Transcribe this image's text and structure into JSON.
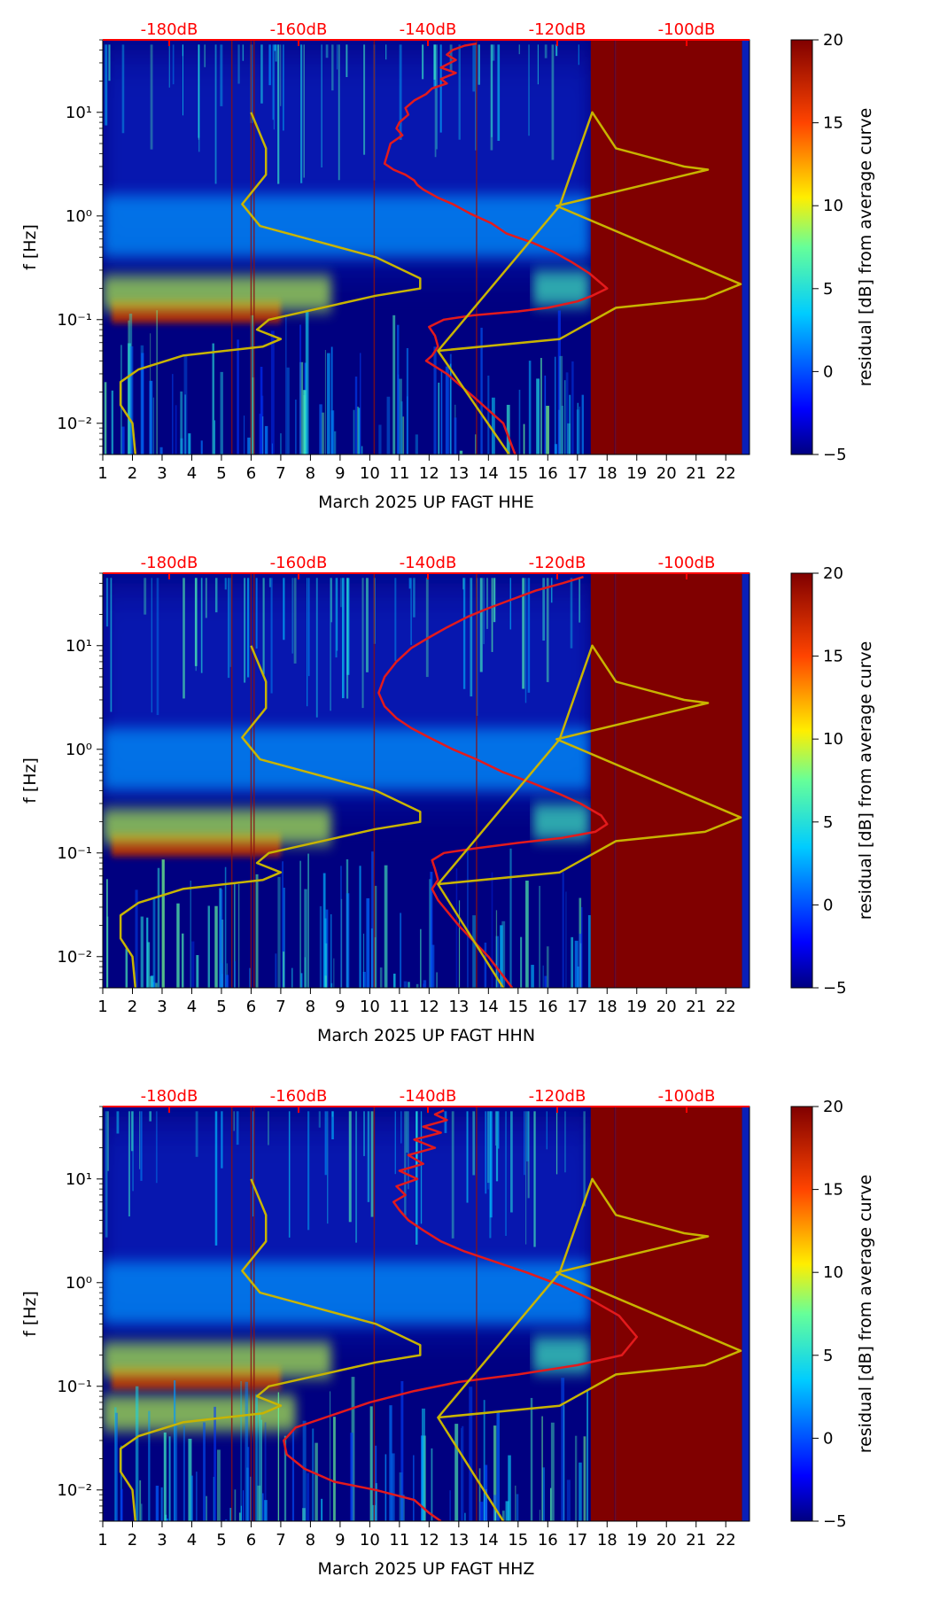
{
  "colors": {
    "background": "#000080",
    "saturated": "#800000",
    "average_curve": "#e31a1c",
    "model_curve": "#c8b400",
    "top_labels": "#ff0000"
  },
  "chart_data": [
    {
      "type": "heatmap",
      "title": "",
      "xlabel": "March 2025 UP FAGT  HHE",
      "ylabel": "f [Hz]",
      "x_ticks": [
        "1",
        "2",
        "3",
        "4",
        "5",
        "6",
        "7",
        "8",
        "9",
        "10",
        "11",
        "12",
        "13",
        "14",
        "15",
        "16",
        "17",
        "18",
        "19",
        "20",
        "21",
        "22"
      ],
      "xlim": [
        1,
        22.8
      ],
      "y_ticks": [
        0.01,
        0.1,
        1,
        10
      ],
      "y_tick_labels": [
        "10⁻²",
        "10⁻¹",
        "10⁰",
        "10¹"
      ],
      "ylim": [
        0.005,
        50
      ],
      "y_scale": "log",
      "top_axis_labels": [
        "-180dB",
        "-160dB",
        "-140dB",
        "-120dB",
        "-100dB"
      ],
      "colorbar": {
        "label": "residual [dB] from average curve",
        "ticks": [
          -5,
          0,
          5,
          10,
          15,
          20
        ],
        "range": [
          -5,
          20
        ]
      },
      "saturated_ranges": [
        [
          17.45,
          18.25
        ],
        [
          18.3,
          22.55
        ]
      ],
      "bands": [
        {
          "center_hz": 0.12,
          "x_start": 1.3,
          "x_end": 7.0,
          "level": 18
        },
        {
          "center_hz": 0.18,
          "x_start": 1.0,
          "x_end": 8.7,
          "level": 9
        },
        {
          "center_hz": 0.2,
          "x_start": 15.5,
          "x_end": 17.4,
          "level": 6
        },
        {
          "center_hz": 0.8,
          "x_start": 1.0,
          "x_end": 17.4,
          "level": 2
        }
      ],
      "series": [
        {
          "name": "",
          "x": [
            13.6,
            13.2,
            12.8,
            12.6,
            12.9,
            12.4,
            12.9,
            12.4,
            12.6,
            12.1,
            11.9,
            11.5,
            11.2,
            11.3,
            11.0,
            10.9,
            11.1,
            10.7,
            10.6,
            10.5,
            10.8,
            11.2,
            11.5,
            11.6,
            11.8,
            12.3,
            12.8,
            13.4,
            14.1,
            14.6,
            15.5,
            16.2,
            16.8,
            17.4,
            18.0,
            17.5,
            17.0,
            16.0,
            15.0,
            13.5,
            12.5,
            12.0,
            12.2,
            12.3,
            12.1,
            11.9,
            12.6,
            13.5,
            14.5,
            14.9
          ],
          "y": [
            46,
            44,
            40,
            36,
            32,
            27,
            24,
            21,
            19,
            17,
            15,
            13,
            11,
            9.5,
            8,
            7,
            6,
            5,
            4,
            3.2,
            2.8,
            2.5,
            2.2,
            2.0,
            1.8,
            1.5,
            1.3,
            1.05,
            0.85,
            0.68,
            0.55,
            0.45,
            0.36,
            0.28,
            0.2,
            0.17,
            0.15,
            0.13,
            0.12,
            0.11,
            0.1,
            0.085,
            0.07,
            0.055,
            0.045,
            0.04,
            0.03,
            0.018,
            0.01,
            0.005
          ]
        },
        {
          "name": "",
          "x": [
            6.0,
            6.5,
            6.5,
            5.7,
            6.3,
            10.2,
            11.7,
            11.7,
            10.2,
            6.6,
            6.2,
            7.0,
            6.4,
            3.7,
            2.2,
            1.6,
            1.6,
            2.0,
            2.1
          ],
          "y": [
            10,
            4.5,
            2.5,
            1.3,
            0.8,
            0.4,
            0.25,
            0.2,
            0.17,
            0.1,
            0.08,
            0.065,
            0.055,
            0.045,
            0.033,
            0.025,
            0.015,
            0.01,
            0.005
          ]
        },
        {
          "name": "",
          "x": [
            14.7,
            12.3,
            16.4,
            18.3,
            21.3,
            22.5,
            16.3,
            21.4,
            20.6,
            18.3,
            17.5,
            16.4,
            12.3,
            12.3,
            14.7
          ],
          "y": [
            0.005,
            0.05,
            0.065,
            0.13,
            0.16,
            0.22,
            1.25,
            2.8,
            3.0,
            4.5,
            10,
            1.25,
            0.05,
            0.05,
            0.005
          ]
        }
      ]
    },
    {
      "type": "heatmap",
      "title": "",
      "xlabel": "March 2025 UP FAGT  HHN",
      "ylabel": "f [Hz]",
      "x_ticks": [
        "1",
        "2",
        "3",
        "4",
        "5",
        "6",
        "7",
        "8",
        "9",
        "10",
        "11",
        "12",
        "13",
        "14",
        "15",
        "16",
        "17",
        "18",
        "19",
        "20",
        "21",
        "22"
      ],
      "xlim": [
        1,
        22.8
      ],
      "y_ticks": [
        0.01,
        0.1,
        1,
        10
      ],
      "y_tick_labels": [
        "10⁻²",
        "10⁻¹",
        "10⁰",
        "10¹"
      ],
      "ylim": [
        0.005,
        50
      ],
      "y_scale": "log",
      "top_axis_labels": [
        "-180dB",
        "-160dB",
        "-140dB",
        "-120dB",
        "-100dB"
      ],
      "colorbar": {
        "label": "residual [dB] from average curve",
        "ticks": [
          -5,
          0,
          5,
          10,
          15,
          20
        ],
        "range": [
          -5,
          20
        ]
      },
      "saturated_ranges": [
        [
          17.45,
          18.25
        ],
        [
          18.3,
          22.55
        ]
      ],
      "bands": [
        {
          "center_hz": 0.12,
          "x_start": 1.3,
          "x_end": 7.0,
          "level": 18
        },
        {
          "center_hz": 0.18,
          "x_start": 1.0,
          "x_end": 8.7,
          "level": 9
        },
        {
          "center_hz": 0.2,
          "x_start": 15.5,
          "x_end": 17.4,
          "level": 6
        },
        {
          "center_hz": 0.8,
          "x_start": 1.0,
          "x_end": 17.4,
          "level": 2
        }
      ],
      "series": [
        {
          "name": "",
          "x": [
            17.2,
            16.5,
            15.6,
            14.8,
            14.0,
            13.3,
            12.6,
            12.0,
            11.4,
            10.9,
            10.5,
            10.3,
            10.5,
            10.9,
            11.4,
            12.0,
            12.8,
            13.6,
            14.5,
            15.5,
            16.4,
            17.1,
            17.8,
            18.0,
            17.6,
            16.5,
            15.0,
            13.5,
            12.5,
            12.1,
            12.2,
            12.3,
            12.1,
            12.3,
            13.0,
            14.0,
            14.8
          ],
          "y": [
            46,
            40,
            34,
            28,
            23,
            19,
            15,
            12,
            9.5,
            7,
            5,
            3.5,
            2.6,
            2.0,
            1.6,
            1.3,
            1.0,
            0.8,
            0.6,
            0.47,
            0.37,
            0.3,
            0.23,
            0.19,
            0.16,
            0.14,
            0.125,
            0.11,
            0.1,
            0.085,
            0.07,
            0.055,
            0.045,
            0.035,
            0.02,
            0.01,
            0.005
          ]
        },
        {
          "name": "",
          "x": [
            6.0,
            6.5,
            6.5,
            5.7,
            6.3,
            10.2,
            11.7,
            11.7,
            10.2,
            6.6,
            6.2,
            7.0,
            6.4,
            3.7,
            2.2,
            1.6,
            1.6,
            2.0,
            2.1
          ],
          "y": [
            10,
            4.5,
            2.5,
            1.3,
            0.8,
            0.4,
            0.25,
            0.2,
            0.17,
            0.1,
            0.08,
            0.065,
            0.055,
            0.045,
            0.033,
            0.025,
            0.015,
            0.01,
            0.005
          ]
        },
        {
          "name": "",
          "x": [
            14.5,
            12.3,
            16.4,
            18.3,
            21.3,
            22.5,
            16.3,
            21.4,
            20.6,
            18.3,
            17.5,
            16.4,
            12.3,
            12.3,
            14.5
          ],
          "y": [
            0.005,
            0.05,
            0.065,
            0.13,
            0.16,
            0.22,
            1.25,
            2.8,
            3.0,
            4.5,
            10,
            1.25,
            0.05,
            0.05,
            0.005
          ]
        }
      ]
    },
    {
      "type": "heatmap",
      "title": "",
      "xlabel": "March 2025 UP FAGT  HHZ",
      "ylabel": "f [Hz]",
      "x_ticks": [
        "1",
        "2",
        "3",
        "4",
        "5",
        "6",
        "7",
        "8",
        "9",
        "10",
        "11",
        "12",
        "13",
        "14",
        "15",
        "16",
        "17",
        "18",
        "19",
        "20",
        "21",
        "22"
      ],
      "xlim": [
        1,
        22.8
      ],
      "y_ticks": [
        0.01,
        0.1,
        1,
        10
      ],
      "y_tick_labels": [
        "10⁻²",
        "10⁻¹",
        "10⁰",
        "10¹"
      ],
      "ylim": [
        0.005,
        50
      ],
      "y_scale": "log",
      "top_axis_labels": [
        "-180dB",
        "-160dB",
        "-140dB",
        "-120dB",
        "-100dB"
      ],
      "colorbar": {
        "label": "residual [dB] from average curve",
        "ticks": [
          -5,
          0,
          5,
          10,
          15,
          20
        ],
        "range": [
          -5,
          20
        ]
      },
      "saturated_ranges": [
        [
          17.45,
          18.25
        ],
        [
          18.3,
          22.55
        ]
      ],
      "bands": [
        {
          "center_hz": 0.12,
          "x_start": 1.3,
          "x_end": 7.0,
          "level": 18
        },
        {
          "center_hz": 0.055,
          "x_start": 1.0,
          "x_end": 7.5,
          "level": 9
        },
        {
          "center_hz": 0.18,
          "x_start": 1.0,
          "x_end": 8.7,
          "level": 9
        },
        {
          "center_hz": 0.2,
          "x_start": 15.5,
          "x_end": 17.4,
          "level": 6
        },
        {
          "center_hz": 0.8,
          "x_start": 1.0,
          "x_end": 17.4,
          "level": 2
        }
      ],
      "series": [
        {
          "name": "",
          "x": [
            12.5,
            12.2,
            12.6,
            11.8,
            12.4,
            11.5,
            12.2,
            11.3,
            11.8,
            11.0,
            11.6,
            10.9,
            11.2,
            10.8,
            11.0,
            11.3,
            11.8,
            12.4,
            13.2,
            14.2,
            15.3,
            16.4,
            17.4,
            18.4,
            19.0,
            18.5,
            17.0,
            15.0,
            13.0,
            11.5,
            10.0,
            8.5,
            7.5,
            7.1,
            7.2,
            7.8,
            8.8,
            10.2,
            11.5,
            12.0,
            12.4
          ],
          "y": [
            46,
            42,
            37,
            32,
            28,
            24,
            20,
            17,
            14,
            12,
            10,
            8.5,
            7,
            6,
            5,
            4,
            3.2,
            2.5,
            2.0,
            1.6,
            1.25,
            0.95,
            0.7,
            0.48,
            0.3,
            0.2,
            0.16,
            0.13,
            0.11,
            0.09,
            0.07,
            0.05,
            0.04,
            0.03,
            0.022,
            0.016,
            0.012,
            0.01,
            0.008,
            0.006,
            0.005
          ]
        },
        {
          "name": "",
          "x": [
            6.0,
            6.5,
            6.5,
            5.7,
            6.3,
            10.2,
            11.7,
            11.7,
            10.2,
            6.6,
            6.2,
            7.0,
            6.4,
            3.7,
            2.2,
            1.6,
            1.6,
            2.0,
            2.1
          ],
          "y": [
            10,
            4.5,
            2.5,
            1.3,
            0.8,
            0.4,
            0.25,
            0.2,
            0.17,
            0.1,
            0.08,
            0.065,
            0.055,
            0.045,
            0.033,
            0.025,
            0.015,
            0.01,
            0.005
          ]
        },
        {
          "name": "",
          "x": [
            14.5,
            12.3,
            16.4,
            18.3,
            21.3,
            22.5,
            16.3,
            21.4,
            20.6,
            18.3,
            17.5,
            16.4,
            12.3,
            12.3,
            14.5
          ],
          "y": [
            0.005,
            0.05,
            0.065,
            0.13,
            0.16,
            0.22,
            1.25,
            2.8,
            3.0,
            4.5,
            10,
            1.25,
            0.05,
            0.05,
            0.005
          ]
        }
      ]
    }
  ]
}
